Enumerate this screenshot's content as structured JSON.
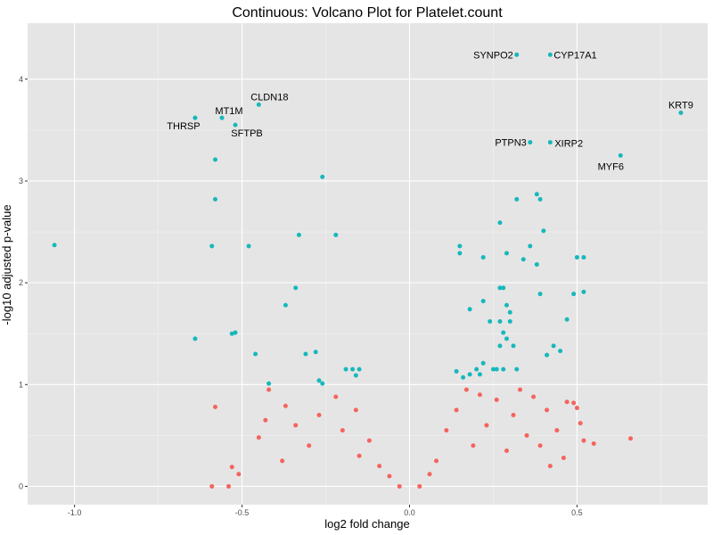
{
  "chart_data": {
    "type": "scatter",
    "title": "Continuous: Volcano Plot for Platelet.count",
    "xlabel": "log2 fold change",
    "ylabel": "-log10 adjusted p-value",
    "xlim": [
      -1.14,
      0.89
    ],
    "ylim": [
      -0.18,
      4.55
    ],
    "x_ticks": [
      -1.0,
      -0.5,
      0.0,
      0.5
    ],
    "x_tick_labels": [
      "-1.0",
      "-0.5",
      "0.0",
      "0.5"
    ],
    "y_ticks": [
      0,
      1,
      2,
      3,
      4
    ],
    "y_tick_labels": [
      "0",
      "1",
      "2",
      "3",
      "4"
    ],
    "colors": {
      "significant": "#16b8bb",
      "nonsignificant": "#f4645d",
      "panel": "#e5e5e5",
      "grid_major": "#ffffff",
      "grid_minor": "#f2f2f2"
    },
    "series": [
      {
        "values": [
          {
            "x": 0.32,
            "y": 4.24,
            "label": "SYNPO2"
          },
          {
            "x": 0.42,
            "y": 4.24,
            "label": "CYP17A1"
          },
          {
            "x": 0.81,
            "y": 3.67,
            "label": "KRT9"
          },
          {
            "x": -0.45,
            "y": 3.75,
            "label": "CLDN18"
          },
          {
            "x": -0.64,
            "y": 3.62,
            "label": "THRSP"
          },
          {
            "x": -0.56,
            "y": 3.62,
            "label": "MT1M"
          },
          {
            "x": -0.52,
            "y": 3.55,
            "label": "SFTPB"
          },
          {
            "x": 0.36,
            "y": 3.38,
            "label": "PTPN3"
          },
          {
            "x": 0.42,
            "y": 3.38,
            "label": "XIRP2"
          },
          {
            "x": 0.63,
            "y": 3.25,
            "label": "MYF6"
          },
          {
            "x": -0.58,
            "y": 3.21
          },
          {
            "x": -0.26,
            "y": 3.04
          },
          {
            "x": -0.58,
            "y": 2.82
          },
          {
            "x": 0.38,
            "y": 2.87
          },
          {
            "x": 0.32,
            "y": 2.82
          },
          {
            "x": 0.39,
            "y": 2.82
          },
          {
            "x": 0.27,
            "y": 2.59
          },
          {
            "x": 0.4,
            "y": 2.51
          },
          {
            "x": -1.06,
            "y": 2.37
          },
          {
            "x": -0.59,
            "y": 2.36
          },
          {
            "x": -0.48,
            "y": 2.36
          },
          {
            "x": -0.33,
            "y": 2.47
          },
          {
            "x": -0.22,
            "y": 2.47
          },
          {
            "x": 0.15,
            "y": 2.36
          },
          {
            "x": 0.15,
            "y": 2.29
          },
          {
            "x": 0.22,
            "y": 2.25
          },
          {
            "x": 0.29,
            "y": 2.29
          },
          {
            "x": 0.36,
            "y": 2.36
          },
          {
            "x": 0.34,
            "y": 2.23
          },
          {
            "x": 0.5,
            "y": 2.25
          },
          {
            "x": 0.52,
            "y": 2.25
          },
          {
            "x": 0.38,
            "y": 2.18
          },
          {
            "x": -0.34,
            "y": 1.95
          },
          {
            "x": 0.27,
            "y": 1.95
          },
          {
            "x": 0.28,
            "y": 1.95
          },
          {
            "x": 0.52,
            "y": 1.91
          },
          {
            "x": 0.49,
            "y": 1.89
          },
          {
            "x": 0.39,
            "y": 1.89
          },
          {
            "x": -0.37,
            "y": 1.78
          },
          {
            "x": 0.22,
            "y": 1.82
          },
          {
            "x": 0.29,
            "y": 1.78
          },
          {
            "x": 0.18,
            "y": 1.74
          },
          {
            "x": 0.3,
            "y": 1.71
          },
          {
            "x": 0.24,
            "y": 1.62
          },
          {
            "x": 0.27,
            "y": 1.62
          },
          {
            "x": 0.3,
            "y": 1.62
          },
          {
            "x": 0.47,
            "y": 1.64
          },
          {
            "x": -0.53,
            "y": 1.5
          },
          {
            "x": -0.52,
            "y": 1.51
          },
          {
            "x": -0.64,
            "y": 1.45
          },
          {
            "x": 0.28,
            "y": 1.51
          },
          {
            "x": 0.29,
            "y": 1.45
          },
          {
            "x": 0.27,
            "y": 1.38
          },
          {
            "x": 0.31,
            "y": 1.38
          },
          {
            "x": 0.43,
            "y": 1.38
          },
          {
            "x": 0.45,
            "y": 1.33
          },
          {
            "x": 0.41,
            "y": 1.29
          },
          {
            "x": -0.46,
            "y": 1.3
          },
          {
            "x": -0.31,
            "y": 1.3
          },
          {
            "x": -0.28,
            "y": 1.32
          },
          {
            "x": -0.19,
            "y": 1.15
          },
          {
            "x": -0.17,
            "y": 1.15
          },
          {
            "x": -0.16,
            "y": 1.09
          },
          {
            "x": -0.15,
            "y": 1.15
          },
          {
            "x": 0.14,
            "y": 1.13
          },
          {
            "x": 0.16,
            "y": 1.07
          },
          {
            "x": 0.18,
            "y": 1.1
          },
          {
            "x": 0.2,
            "y": 1.15
          },
          {
            "x": 0.22,
            "y": 1.21
          },
          {
            "x": 0.25,
            "y": 1.15
          },
          {
            "x": 0.26,
            "y": 1.15
          },
          {
            "x": 0.28,
            "y": 1.15
          },
          {
            "x": 0.32,
            "y": 1.15
          },
          {
            "x": 0.21,
            "y": 1.1
          },
          {
            "x": -0.42,
            "y": 1.01
          },
          {
            "x": -0.27,
            "y": 1.04
          },
          {
            "x": -0.26,
            "y": 1.01
          }
        ]
      },
      {
        "values": [
          {
            "x": -0.58,
            "y": 0.78
          },
          {
            "x": -0.59,
            "y": 0.0
          },
          {
            "x": -0.54,
            "y": 0.0
          },
          {
            "x": -0.53,
            "y": 0.19
          },
          {
            "x": -0.51,
            "y": 0.12
          },
          {
            "x": -0.42,
            "y": 0.95
          },
          {
            "x": -0.45,
            "y": 0.48
          },
          {
            "x": -0.43,
            "y": 0.65
          },
          {
            "x": -0.38,
            "y": 0.25
          },
          {
            "x": -0.37,
            "y": 0.79
          },
          {
            "x": -0.34,
            "y": 0.6
          },
          {
            "x": -0.3,
            "y": 0.4
          },
          {
            "x": -0.27,
            "y": 0.7
          },
          {
            "x": -0.22,
            "y": 0.88
          },
          {
            "x": -0.2,
            "y": 0.55
          },
          {
            "x": -0.16,
            "y": 0.75
          },
          {
            "x": -0.15,
            "y": 0.3
          },
          {
            "x": -0.12,
            "y": 0.45
          },
          {
            "x": -0.09,
            "y": 0.2
          },
          {
            "x": -0.06,
            "y": 0.1
          },
          {
            "x": 0.06,
            "y": 0.12
          },
          {
            "x": 0.08,
            "y": 0.25
          },
          {
            "x": 0.11,
            "y": 0.55
          },
          {
            "x": 0.14,
            "y": 0.75
          },
          {
            "x": 0.17,
            "y": 0.95
          },
          {
            "x": 0.19,
            "y": 0.4
          },
          {
            "x": 0.21,
            "y": 0.9
          },
          {
            "x": 0.23,
            "y": 0.6
          },
          {
            "x": 0.26,
            "y": 0.85
          },
          {
            "x": 0.29,
            "y": 0.35
          },
          {
            "x": 0.31,
            "y": 0.7
          },
          {
            "x": 0.33,
            "y": 0.95
          },
          {
            "x": 0.35,
            "y": 0.5
          },
          {
            "x": 0.37,
            "y": 0.88
          },
          {
            "x": 0.39,
            "y": 0.4
          },
          {
            "x": 0.41,
            "y": 0.75
          },
          {
            "x": 0.42,
            "y": 0.2
          },
          {
            "x": 0.44,
            "y": 0.55
          },
          {
            "x": 0.46,
            "y": 0.28
          },
          {
            "x": 0.47,
            "y": 0.83
          },
          {
            "x": 0.49,
            "y": 0.82
          },
          {
            "x": 0.5,
            "y": 0.77
          },
          {
            "x": 0.51,
            "y": 0.62
          },
          {
            "x": 0.52,
            "y": 0.45
          },
          {
            "x": 0.55,
            "y": 0.42
          },
          {
            "x": 0.66,
            "y": 0.47
          },
          {
            "x": 0.03,
            "y": 0.0
          },
          {
            "x": -0.03,
            "y": 0.0
          }
        ]
      }
    ]
  }
}
